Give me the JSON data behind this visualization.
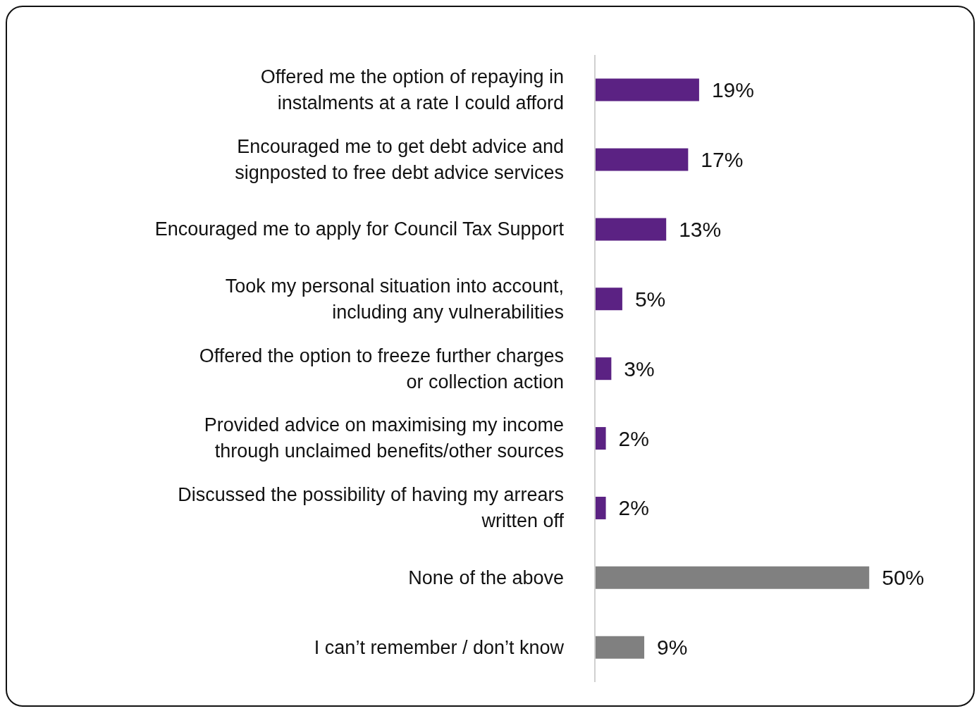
{
  "chart_data": {
    "type": "bar",
    "orientation": "horizontal",
    "categories": [
      "Offered me the option of repaying in instalments at a rate I could afford",
      "Encouraged me to get debt advice and signposted to free debt advice services",
      "Encouraged me to apply for Council Tax Support",
      "Took my personal situation into account, including any vulnerabilities",
      "Offered the option to freeze further charges or collection action",
      "Provided advice on maximising my income through unclaimed benefits/other sources",
      "Discussed the possibility of having my arrears written off",
      "None of the above",
      "I can’t remember / don’t know"
    ],
    "values": [
      19,
      17,
      13,
      5,
      3,
      2,
      2,
      50,
      9
    ],
    "colors": [
      "#5b2283",
      "#5b2283",
      "#5b2283",
      "#5b2283",
      "#5b2283",
      "#5b2283",
      "#5b2283",
      "#808080",
      "#808080"
    ],
    "value_labels": [
      "19%",
      "17%",
      "13%",
      "5%",
      "3%",
      "2%",
      "2%",
      "50%",
      "9%"
    ],
    "grid": false,
    "legend": false
  }
}
